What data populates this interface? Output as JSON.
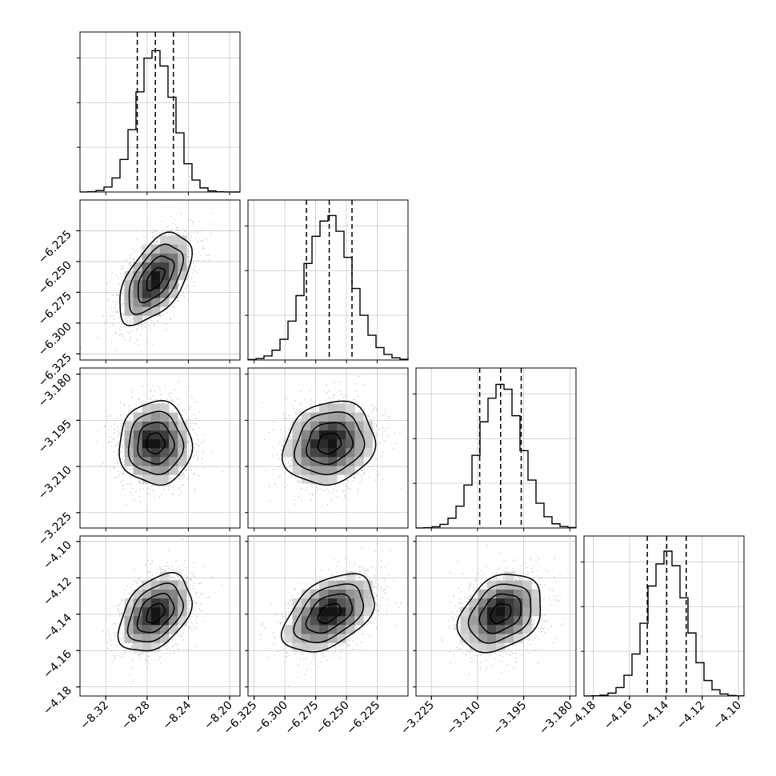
{
  "chart_data": {
    "type": "corner",
    "parameters": 4,
    "colors": {
      "line": "#000000",
      "grid": "#c8c8c8",
      "scatter": "#9a9a9a",
      "background": "#ffffff"
    },
    "grid": true,
    "ranges": [
      [
        -8.345,
        -8.19
      ],
      [
        -6.33,
        -6.2
      ],
      [
        -3.23,
        -3.178
      ],
      [
        -4.185,
        -4.097
      ]
    ],
    "ticks": [
      {
        "values": [
          -8.32,
          -8.28,
          -8.24,
          -8.2
        ],
        "labels": [
          "−8.32",
          "−8.28",
          "−8.24",
          "−8.20"
        ]
      },
      {
        "values": [
          -6.325,
          -6.3,
          -6.275,
          -6.25,
          -6.225
        ],
        "labels": [
          "−6.325",
          "−6.300",
          "−6.275",
          "−6.250",
          "−6.225"
        ]
      },
      {
        "values": [
          -3.225,
          -3.21,
          -3.195,
          -3.18
        ],
        "labels": [
          "−3.225",
          "−3.210",
          "−3.195",
          "−3.180"
        ]
      },
      {
        "values": [
          -4.18,
          -4.16,
          -4.14,
          -4.12,
          -4.1
        ],
        "labels": [
          "−4.18",
          "−4.16",
          "−4.14",
          "−4.12",
          "−4.10"
        ]
      }
    ],
    "means": [
      -8.272,
      -6.264,
      -3.2025,
      -4.1395
    ],
    "stds": [
      0.0175,
      0.0185,
      0.00675,
      0.0107
    ],
    "quantiles": [
      [
        -8.2895,
        -8.272,
        -8.2545
      ],
      [
        -6.2825,
        -6.264,
        -6.2455
      ],
      [
        -3.2093,
        -3.2025,
        -3.1958
      ],
      [
        -4.1502,
        -4.1395,
        -4.1288
      ]
    ],
    "correlations": [
      {
        "pair": [
          0,
          1
        ],
        "rho": 0.55
      },
      {
        "pair": [
          0,
          2
        ],
        "rho": 0.0
      },
      {
        "pair": [
          1,
          2
        ],
        "rho": 0.15
      },
      {
        "pair": [
          0,
          3
        ],
        "rho": 0.4
      },
      {
        "pair": [
          1,
          3
        ],
        "rho": 0.45
      },
      {
        "pair": [
          2,
          3
        ],
        "rho": 0.3
      }
    ],
    "contour_levels_sigma": [
      0.5,
      1.0,
      1.5,
      2.0
    ]
  }
}
